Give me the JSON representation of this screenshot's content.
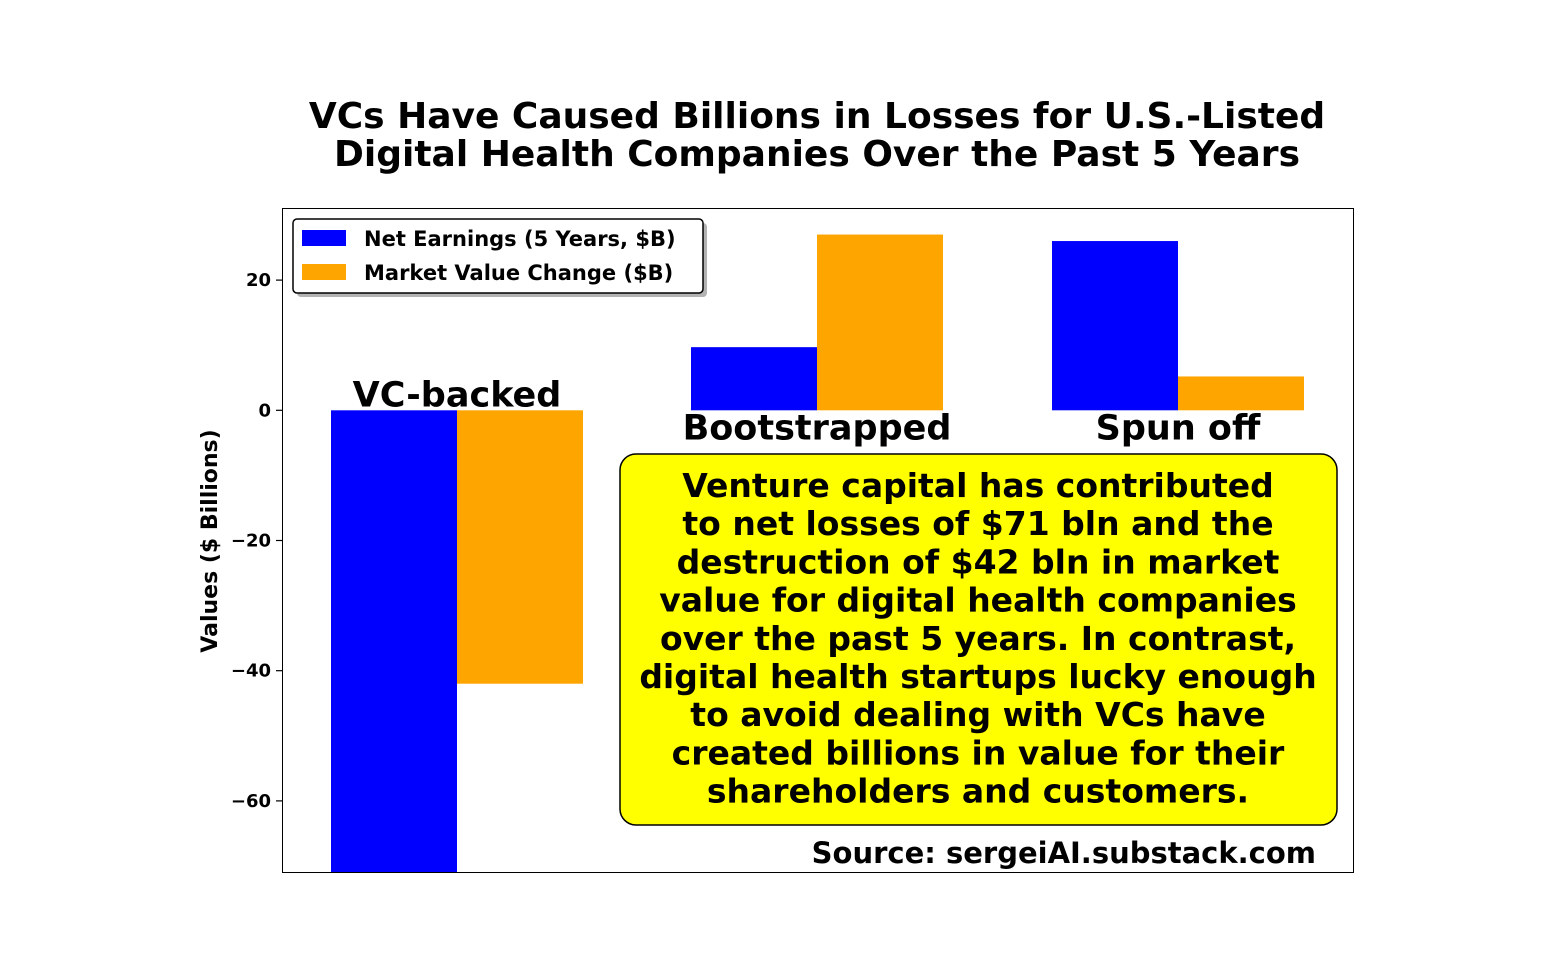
{
  "chart_data": {
    "type": "bar",
    "title_lines": [
      "VCs Have Caused Billions in Losses for U.S.-Listed",
      "Digital Health Companies Over the Past 5 Years"
    ],
    "ylabel": "Values ($ Billions)",
    "ylim": [
      -71,
      31
    ],
    "yticks": [
      {
        "value": 20,
        "label": "20"
      },
      {
        "value": 0,
        "label": "0"
      },
      {
        "value": -20,
        "label": "−20"
      },
      {
        "value": -40,
        "label": "−40"
      },
      {
        "value": -60,
        "label": "−60"
      }
    ],
    "categories": [
      "VC-backed",
      "Bootstrapped",
      "Spun off"
    ],
    "series": [
      {
        "name": "Net Earnings (5 Years, $B)",
        "color": "#0000ff",
        "values": [
          -71,
          9.7,
          26
        ]
      },
      {
        "name": "Market Value Change ($B)",
        "color": "#ffa500",
        "values": [
          -42,
          27,
          5.2
        ]
      }
    ],
    "legend_position": "upper-left",
    "grid": false,
    "annotation": {
      "lines": [
        "Venture capital has contributed",
        "to net losses of $71 bln and the",
        "destruction of $42 bln in market",
        "value for digital health companies",
        "over the past 5 years. In contrast,",
        "digital health startups lucky enough",
        "to avoid dealing with VCs have",
        "created billions in value for their",
        "shareholders and customers."
      ],
      "background": "#ffff00"
    },
    "source": "Source: sergeiAI.substack.com"
  }
}
